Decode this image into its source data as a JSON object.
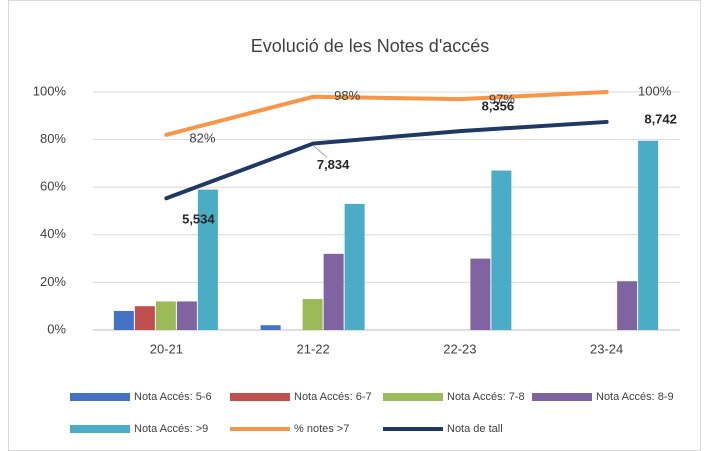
{
  "chart_data": {
    "type": "bar",
    "title": "Evolució de les Notes d'accés",
    "categories": [
      "20-21",
      "21-22",
      "22-23",
      "23-24"
    ],
    "ylim": [
      0,
      100
    ],
    "yticks": [
      {
        "value": 0,
        "label": "0%"
      },
      {
        "value": 20,
        "label": "20%"
      },
      {
        "value": 40,
        "label": "40%"
      },
      {
        "value": 60,
        "label": "60%"
      },
      {
        "value": 80,
        "label": "80%"
      },
      {
        "value": 100,
        "label": "100%"
      }
    ],
    "y2lim": [
      0,
      10
    ],
    "grid": true,
    "legend": "bottom",
    "series": [
      {
        "name": "Nota Accés: 5-6",
        "type": "bar",
        "color": "#4472c4",
        "values": [
          8,
          2,
          0,
          0
        ]
      },
      {
        "name": "Nota Accés: 6-7",
        "type": "bar",
        "color": "#c0504d",
        "values": [
          10,
          0,
          0,
          0
        ]
      },
      {
        "name": "Nota Accés: 7-8",
        "type": "bar",
        "color": "#9bbb59",
        "values": [
          12,
          13,
          0,
          0
        ]
      },
      {
        "name": "Nota Accés: 8-9",
        "type": "bar",
        "color": "#8064a2",
        "values": [
          12,
          32,
          30,
          20.5
        ]
      },
      {
        "name": "Nota Accés: >9",
        "type": "bar",
        "color": "#4bacc6",
        "values": [
          59,
          53,
          67,
          79.5
        ]
      },
      {
        "name": "% notes >7",
        "type": "line",
        "color": "#f79646",
        "values": [
          82,
          98,
          97,
          100
        ],
        "value_labels": [
          "82%",
          "98%",
          "97%",
          "100%"
        ]
      },
      {
        "name": "Nota de tall",
        "type": "line",
        "axis": "y2",
        "color": "#1f3864",
        "values": [
          5.534,
          7.834,
          8.356,
          8.742
        ],
        "value_labels": [
          "5,534",
          "7,834",
          "8,356",
          "8,742"
        ]
      }
    ]
  }
}
